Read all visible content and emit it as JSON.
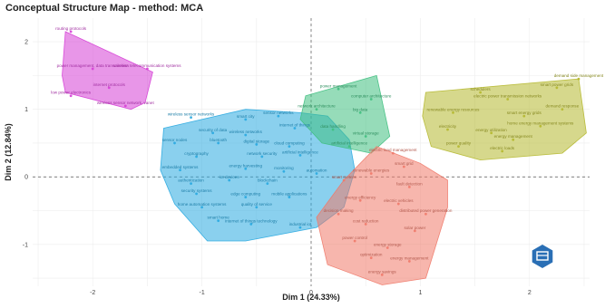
{
  "chart_data": {
    "type": "scatter",
    "title": "Conceptual Structure Map - method: MCA",
    "xlabel": "Dim 1 (24.33%)",
    "ylabel": "Dim 2 (12.84%)",
    "xlim": [
      -2.55,
      2.55
    ],
    "ylim": [
      -1.62,
      2.35
    ],
    "x_ticks": [
      -2,
      -1,
      0,
      1,
      2
    ],
    "y_ticks": [
      -1,
      0,
      1,
      2
    ],
    "grid": true,
    "clusters": [
      {
        "name": "cluster-magenta",
        "color": "#d63fd6",
        "hull": [
          [
            -2.25,
            2.15
          ],
          [
            -1.45,
            1.55
          ],
          [
            -1.52,
            1.1
          ],
          [
            -1.65,
            1.0
          ],
          [
            -2.25,
            1.25
          ],
          [
            -2.28,
            1.5
          ]
        ],
        "points": [
          {
            "x": -2.2,
            "y": 2.15,
            "label": "routing protocols"
          },
          {
            "x": -2.0,
            "y": 1.6,
            "label": "power management, data transmission"
          },
          {
            "x": -1.5,
            "y": 1.6,
            "label": "wireless telecommunication systems"
          },
          {
            "x": -1.85,
            "y": 1.32,
            "label": "internet protocols"
          },
          {
            "x": -2.2,
            "y": 1.2,
            "label": "low power electronics"
          },
          {
            "x": -1.7,
            "y": 1.05,
            "label": "wireless sensor network, vanet"
          }
        ]
      },
      {
        "name": "cluster-blue",
        "color": "#29a9e0",
        "hull": [
          [
            -1.35,
            0.72
          ],
          [
            -0.6,
            1.0
          ],
          [
            -0.1,
            0.95
          ],
          [
            0.15,
            0.9
          ],
          [
            0.35,
            0.55
          ],
          [
            0.4,
            0.1
          ],
          [
            0.3,
            -0.45
          ],
          [
            0.05,
            -0.75
          ],
          [
            -0.6,
            -0.95
          ],
          [
            -0.95,
            -0.95
          ],
          [
            -1.25,
            -0.4
          ],
          [
            -1.38,
            0.1
          ]
        ],
        "points": [
          {
            "x": -1.1,
            "y": 0.88,
            "label": "wireless sensor networks"
          },
          {
            "x": -0.6,
            "y": 0.85,
            "label": "smart city"
          },
          {
            "x": -0.3,
            "y": 0.9,
            "label": "sensor networks"
          },
          {
            "x": -0.15,
            "y": 0.72,
            "label": "internet of things"
          },
          {
            "x": -0.9,
            "y": 0.65,
            "label": "security of data"
          },
          {
            "x": -0.6,
            "y": 0.62,
            "label": "wireless networks"
          },
          {
            "x": -1.25,
            "y": 0.5,
            "label": "sensor nodes"
          },
          {
            "x": -0.85,
            "y": 0.5,
            "label": "bluetooth"
          },
          {
            "x": -0.5,
            "y": 0.48,
            "label": "digital storage"
          },
          {
            "x": -0.2,
            "y": 0.45,
            "label": "cloud computing"
          },
          {
            "x": -1.05,
            "y": 0.3,
            "label": "cryptography"
          },
          {
            "x": -0.45,
            "y": 0.3,
            "label": "network security"
          },
          {
            "x": -0.1,
            "y": 0.32,
            "label": "artificial intelligence"
          },
          {
            "x": -1.2,
            "y": 0.1,
            "label": "embedded systems"
          },
          {
            "x": -0.6,
            "y": 0.12,
            "label": "energy harvesting"
          },
          {
            "x": -0.25,
            "y": 0.08,
            "label": "monitoring"
          },
          {
            "x": 0.05,
            "y": 0.05,
            "label": "automation"
          },
          {
            "x": -1.1,
            "y": -0.1,
            "label": "authentication"
          },
          {
            "x": -0.75,
            "y": -0.05,
            "label": "iot devices"
          },
          {
            "x": -0.4,
            "y": -0.1,
            "label": "blockchain"
          },
          {
            "x": -1.05,
            "y": -0.25,
            "label": "security systems"
          },
          {
            "x": -0.6,
            "y": -0.3,
            "label": "edge computing"
          },
          {
            "x": -0.2,
            "y": -0.3,
            "label": "mobile applications"
          },
          {
            "x": -1.0,
            "y": -0.45,
            "label": "home automation systems"
          },
          {
            "x": -0.5,
            "y": -0.45,
            "label": "quality of service"
          },
          {
            "x": -0.85,
            "y": -0.65,
            "label": "smart home"
          },
          {
            "x": -0.55,
            "y": -0.7,
            "label": "internet of things technology"
          },
          {
            "x": -0.1,
            "y": -0.75,
            "label": "industrial iot"
          }
        ]
      },
      {
        "name": "cluster-green",
        "color": "#3fbf7f",
        "hull": [
          [
            -0.05,
            1.2
          ],
          [
            0.6,
            1.5
          ],
          [
            0.72,
            0.6
          ],
          [
            0.55,
            0.35
          ],
          [
            0.1,
            0.5
          ],
          [
            -0.1,
            0.85
          ]
        ],
        "points": [
          {
            "x": 0.25,
            "y": 1.3,
            "label": "power management"
          },
          {
            "x": 0.55,
            "y": 1.15,
            "label": "computer architecture"
          },
          {
            "x": 0.05,
            "y": 1.0,
            "label": "network architecture"
          },
          {
            "x": 0.45,
            "y": 0.95,
            "label": "big data"
          },
          {
            "x": 0.2,
            "y": 0.7,
            "label": "data handling"
          },
          {
            "x": 0.5,
            "y": 0.6,
            "label": "virtual storage"
          },
          {
            "x": 0.35,
            "y": 0.45,
            "label": "artificial intelligence"
          }
        ]
      },
      {
        "name": "cluster-red",
        "color": "#f07a6a",
        "hull": [
          [
            0.6,
            0.45
          ],
          [
            1.0,
            0.2
          ],
          [
            1.25,
            -0.05
          ],
          [
            1.25,
            -0.45
          ],
          [
            1.05,
            -1.5
          ],
          [
            0.65,
            -1.6
          ],
          [
            0.15,
            -1.3
          ],
          [
            0.05,
            -0.6
          ],
          [
            0.3,
            -0.05
          ]
        ],
        "points": [
          {
            "x": 0.75,
            "y": 0.35,
            "label": "electric load management"
          },
          {
            "x": 0.85,
            "y": 0.15,
            "label": "smart grid"
          },
          {
            "x": 0.55,
            "y": 0.05,
            "label": "renewable energies"
          },
          {
            "x": 0.3,
            "y": -0.05,
            "label": "smart meters"
          },
          {
            "x": 0.9,
            "y": -0.15,
            "label": "fault detection"
          },
          {
            "x": 0.45,
            "y": -0.35,
            "label": "energy efficiency"
          },
          {
            "x": 0.8,
            "y": -0.4,
            "label": "electric vehicles"
          },
          {
            "x": 0.25,
            "y": -0.55,
            "label": "decision making"
          },
          {
            "x": 1.05,
            "y": -0.55,
            "label": "distributed power generation"
          },
          {
            "x": 0.5,
            "y": -0.7,
            "label": "cost reduction"
          },
          {
            "x": 0.95,
            "y": -0.8,
            "label": "solar power"
          },
          {
            "x": 0.4,
            "y": -0.95,
            "label": "power control"
          },
          {
            "x": 0.7,
            "y": -1.05,
            "label": "energy storage"
          },
          {
            "x": 0.55,
            "y": -1.2,
            "label": "optimization"
          },
          {
            "x": 0.9,
            "y": -1.25,
            "label": "energy management"
          },
          {
            "x": 0.65,
            "y": -1.45,
            "label": "energy savings"
          }
        ]
      },
      {
        "name": "cluster-olive",
        "color": "#b5b82d",
        "hull": [
          [
            1.05,
            1.25
          ],
          [
            2.45,
            1.45
          ],
          [
            2.52,
            0.65
          ],
          [
            2.3,
            0.35
          ],
          [
            1.55,
            0.25
          ],
          [
            1.1,
            0.45
          ],
          [
            1.02,
            0.9
          ]
        ],
        "points": [
          {
            "x": 2.45,
            "y": 1.45,
            "label": "demand side management"
          },
          {
            "x": 2.25,
            "y": 1.32,
            "label": "smart power grids"
          },
          {
            "x": 1.55,
            "y": 1.25,
            "label": "schedulers"
          },
          {
            "x": 1.8,
            "y": 1.15,
            "label": "electric power transmission networks"
          },
          {
            "x": 2.3,
            "y": 1.0,
            "label": "demand response"
          },
          {
            "x": 1.3,
            "y": 0.95,
            "label": "renewable energy resources"
          },
          {
            "x": 1.95,
            "y": 0.9,
            "label": "smart energy grids"
          },
          {
            "x": 2.1,
            "y": 0.75,
            "label": "home energy management systems"
          },
          {
            "x": 1.25,
            "y": 0.7,
            "label": "electricity"
          },
          {
            "x": 1.65,
            "y": 0.65,
            "label": "energy utilization"
          },
          {
            "x": 1.85,
            "y": 0.55,
            "label": "energy management"
          },
          {
            "x": 1.35,
            "y": 0.45,
            "label": "power quality"
          },
          {
            "x": 1.75,
            "y": 0.38,
            "label": "electric loads"
          }
        ]
      }
    ],
    "logo": "bibliometrix-logo"
  }
}
